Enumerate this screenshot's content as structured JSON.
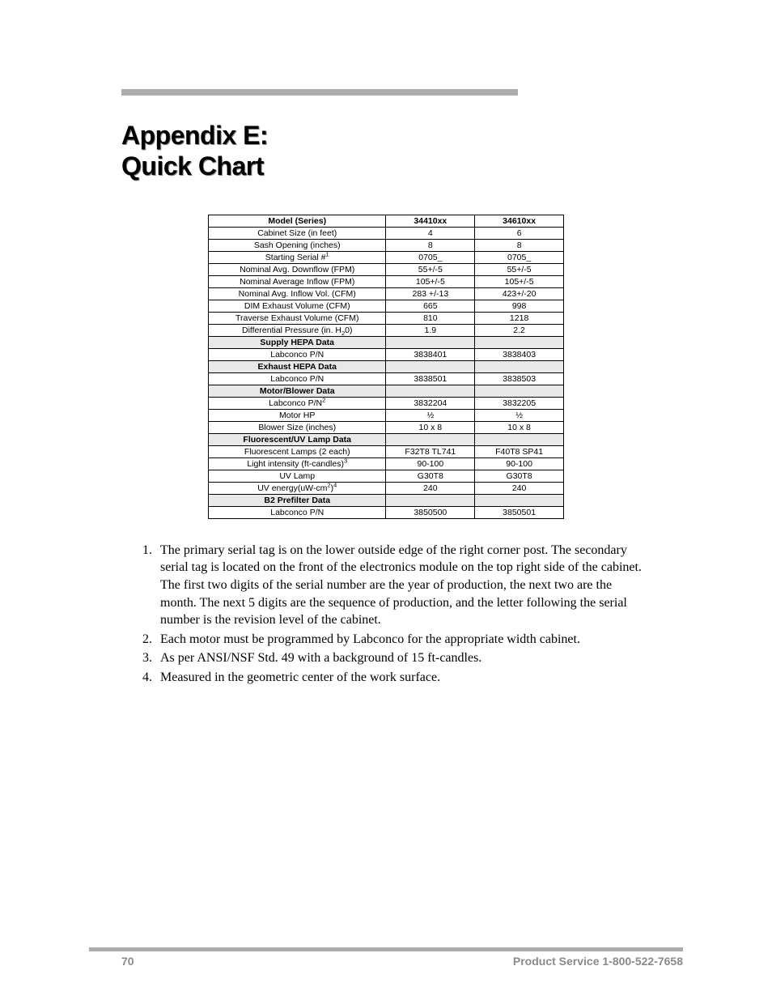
{
  "title_line1": "Appendix E:",
  "title_line2": "Quick Chart",
  "header": {
    "c0": "Model (Series)",
    "c1": "34410xx",
    "c2": "34610xx"
  },
  "rows": [
    {
      "type": "data",
      "c0": "Cabinet Size (in feet)",
      "c1": "4",
      "c2": "6"
    },
    {
      "type": "data",
      "c0": "Sash Opening (inches)",
      "c1": "8",
      "c2": "8"
    },
    {
      "type": "data",
      "c0_html": "Starting Serial #<sup>1</sup>",
      "c1": "0705_",
      "c2": "0705_"
    },
    {
      "type": "data",
      "c0": "Nominal Avg. Downflow (FPM)",
      "c1": "55+/-5",
      "c2": "55+/-5"
    },
    {
      "type": "data",
      "c0": "Nominal Average Inflow (FPM)",
      "c1": "105+/-5",
      "c2": "105+/-5"
    },
    {
      "type": "data",
      "c0": "Nominal Avg. Inflow Vol. (CFM)",
      "c1": "283 +/-13",
      "c2": "423+/-20"
    },
    {
      "type": "data",
      "c0": "DIM Exhaust Volume (CFM)",
      "c1": "665",
      "c2": "998"
    },
    {
      "type": "data",
      "c0": "Traverse Exhaust Volume (CFM)",
      "c1": "810",
      "c2": "1218"
    },
    {
      "type": "data",
      "c0_html": "Differential Pressure (in. H<sub>2</sub>0)",
      "c1": "1.9",
      "c2": "2.2"
    },
    {
      "type": "section",
      "c0": "Supply HEPA Data"
    },
    {
      "type": "data",
      "c0": "Labconco P/N",
      "c1": "3838401",
      "c2": "3838403"
    },
    {
      "type": "section",
      "c0": "Exhaust HEPA Data"
    },
    {
      "type": "data",
      "c0": "Labconco P/N",
      "c1": "3838501",
      "c2": "3838503"
    },
    {
      "type": "section",
      "c0": "Motor/Blower Data"
    },
    {
      "type": "data",
      "c0_html": "Labconco P/N<sup>2</sup>",
      "c1": "3832204",
      "c2": "3832205"
    },
    {
      "type": "data",
      "c0": "Motor HP",
      "c1": "½",
      "c2": "½"
    },
    {
      "type": "data",
      "c0": "Blower Size (inches)",
      "c1": "10 x 8",
      "c2": "10 x 8"
    },
    {
      "type": "section",
      "c0": "Fluorescent/UV Lamp Data"
    },
    {
      "type": "data",
      "c0": "Fluorescent Lamps (2 each)",
      "c1": "F32T8 TL741",
      "c2": "F40T8 SP41"
    },
    {
      "type": "data",
      "c0_html": "Light intensity (ft-candles)<sup>3</sup>",
      "c1": "90-100",
      "c2": "90-100"
    },
    {
      "type": "data",
      "c0": "UV Lamp",
      "c1": "G30T8",
      "c2": "G30T8"
    },
    {
      "type": "data",
      "c0_html": "UV energy(uW-cm<sup>2</sup>)<sup>4</sup>",
      "c1": "240",
      "c2": "240"
    },
    {
      "type": "section",
      "c0": "B2 Prefilter Data"
    },
    {
      "type": "data",
      "c0": "Labconco P/N",
      "c1": "3850500",
      "c2": "3850501"
    }
  ],
  "notes": [
    "The primary serial tag is on the lower outside edge of the right corner post. The secondary serial tag is located on the front of the electronics module on the top right side of the cabinet. The first two digits of the serial number are the year of production, the next two are the month. The next 5 digits are the sequence of production, and the letter following the serial number is the revision level of the cabinet.",
    "Each motor must be programmed by Labconco for the appropriate width cabinet.",
    "As per ANSI/NSF Std. 49 with a background of 15 ft-candles.",
    "Measured in the geometric center of the work surface."
  ],
  "footer": {
    "page": "70",
    "service": "Product Service 1-800-522-7658"
  }
}
